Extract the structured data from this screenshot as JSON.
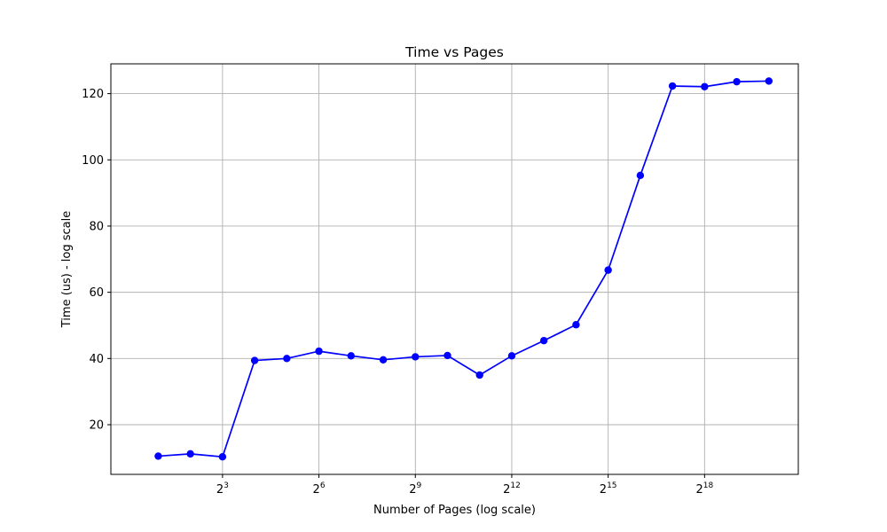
{
  "chart_data": {
    "type": "line",
    "title": "Time vs Pages",
    "xlabel": "Number of Pages (log scale)",
    "ylabel": "Time (us) - log scale",
    "x_scale": "log2",
    "x_ticks": [
      {
        "base": "2",
        "exp": "3",
        "value": 8
      },
      {
        "base": "2",
        "exp": "6",
        "value": 64
      },
      {
        "base": "2",
        "exp": "9",
        "value": 512
      },
      {
        "base": "2",
        "exp": "12",
        "value": 4096
      },
      {
        "base": "2",
        "exp": "15",
        "value": 32768
      },
      {
        "base": "2",
        "exp": "18",
        "value": 262144
      }
    ],
    "y_ticks": [
      "20",
      "40",
      "60",
      "80",
      "100",
      "120"
    ],
    "xlim": [
      0.72,
      1978342
    ],
    "ylim": [
      5,
      129
    ],
    "grid": true,
    "line_color": "#0000ff",
    "series": [
      {
        "x": [
          2,
          4,
          8,
          16,
          32,
          64,
          128,
          256,
          512,
          1024,
          2048,
          4096,
          8192,
          16384,
          32768,
          65536,
          131072,
          262144,
          524288,
          1048576
        ],
        "y": [
          10.5,
          11.2,
          10.3,
          39.4,
          40.0,
          42.2,
          40.8,
          39.6,
          40.5,
          40.9,
          35.0,
          40.8,
          45.4,
          50.2,
          66.7,
          95.3,
          122.3,
          122.1,
          123.6,
          123.8
        ]
      }
    ]
  }
}
